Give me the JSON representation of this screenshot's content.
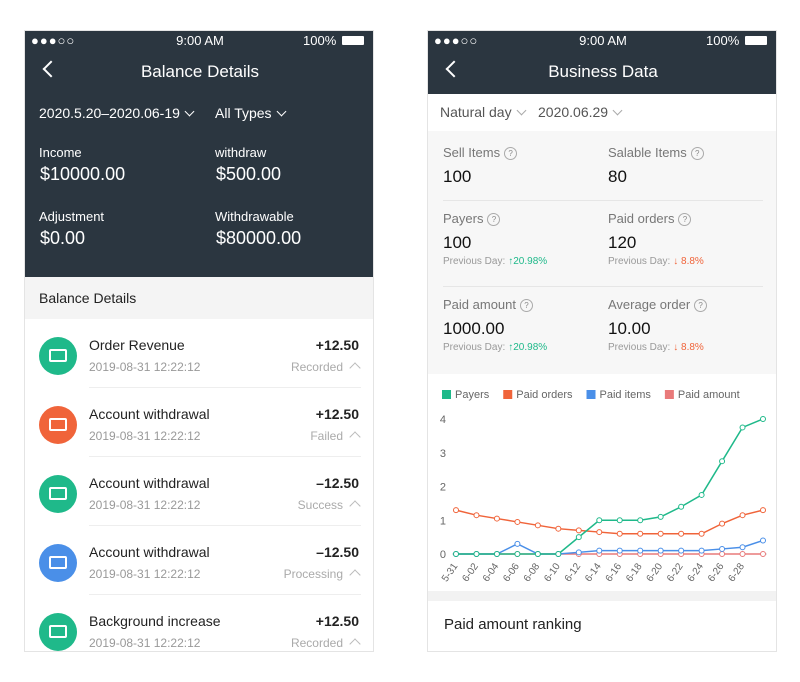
{
  "left": {
    "status": {
      "time": "9:00 AM",
      "battery": "100%"
    },
    "header": {
      "title": "Balance Details"
    },
    "filters": [
      "2020.5.20–2020.06-19",
      "All Types"
    ],
    "summary": [
      {
        "label": "Income",
        "value": "$10000.00"
      },
      {
        "label": "withdraw",
        "value": "$500.00"
      },
      {
        "label": "Adjustment",
        "value": "$0.00"
      },
      {
        "label": "Withdrawable",
        "value": "$80000.00"
      }
    ],
    "section_title": "Balance Details",
    "transactions": [
      {
        "title": "Order Revenue",
        "amount": "+12.50",
        "date": "2019-08-31 12:22:12",
        "status": "Recorded",
        "color": "#1fb98a"
      },
      {
        "title": "Account withdrawal",
        "amount": "+12.50",
        "date": "2019-08-31 12:22:12",
        "status": "Failed",
        "color": "#f0643a"
      },
      {
        "title": "Account withdrawal",
        "amount": "–12.50",
        "date": "2019-08-31 12:22:12",
        "status": "Success",
        "color": "#1fb98a"
      },
      {
        "title": "Account withdrawal",
        "amount": "–12.50",
        "date": "2019-08-31 12:22:12",
        "status": "Processing",
        "color": "#4a8fe8"
      },
      {
        "title": "Background increase",
        "amount": "+12.50",
        "date": "2019-08-31 12:22:12",
        "status": "Recorded",
        "color": "#1fb98a"
      }
    ]
  },
  "right": {
    "status": {
      "time": "9:00 AM",
      "battery": "100%"
    },
    "header": {
      "title": "Business Data"
    },
    "filters": [
      "Natural day",
      "2020.06.29"
    ],
    "metrics": [
      {
        "label": "Sell Items",
        "value": "100"
      },
      {
        "label": "Salable Items",
        "value": "80"
      },
      {
        "label": "Payers",
        "value": "100",
        "prev_label": "Previous Day:",
        "change": "↑20.98%",
        "change_color": "#1fb98a"
      },
      {
        "label": "Paid orders",
        "value": "120",
        "prev_label": "Previous Day:",
        "change": "↓ 8.8%",
        "change_color": "#f0643a"
      },
      {
        "label": "Paid amount",
        "value": "1000.00",
        "prev_label": "Previous Day:",
        "change": "↑20.98%",
        "change_color": "#1fb98a"
      },
      {
        "label": "Average order",
        "value": "10.00",
        "prev_label": "Previous Day:",
        "change": "↓ 8.8%",
        "change_color": "#f0643a"
      }
    ],
    "ranking_title": "Paid amount ranking"
  },
  "chart_data": {
    "type": "line",
    "categories": [
      "5-31",
      "6-02",
      "6-04",
      "6-06",
      "6-08",
      "6-10",
      "6-12",
      "6-14",
      "6-16",
      "6-18",
      "6-20",
      "6-22",
      "6-24",
      "6-26",
      "6-28",
      null
    ],
    "series": [
      {
        "name": "Payers",
        "color": "#1fb98a",
        "values": [
          0,
          0,
          0,
          0,
          0,
          0,
          0.5,
          1,
          1,
          1,
          1.1,
          1.4,
          1.75,
          2.75,
          3.75,
          4
        ]
      },
      {
        "name": "Paid orders",
        "color": "#f0643a",
        "values": [
          1.3,
          1.15,
          1.05,
          0.95,
          0.85,
          0.75,
          0.7,
          0.65,
          0.6,
          0.6,
          0.6,
          0.6,
          0.6,
          0.9,
          1.15,
          1.3
        ]
      },
      {
        "name": "Paid items",
        "color": "#4a8fe8",
        "values": [
          0,
          0,
          0,
          0.3,
          0,
          0,
          0.05,
          0.1,
          0.1,
          0.1,
          0.1,
          0.1,
          0.1,
          0.15,
          0.2,
          0.4
        ]
      },
      {
        "name": "Paid amount",
        "color": "#e97a7a",
        "values": [
          0,
          0,
          0,
          0,
          0,
          0,
          0,
          0,
          0,
          0,
          0,
          0,
          0,
          0,
          0,
          0
        ]
      }
    ],
    "ylim": [
      0,
      4
    ],
    "yticks": [
      0,
      1,
      2,
      3,
      4
    ],
    "grid": false
  }
}
